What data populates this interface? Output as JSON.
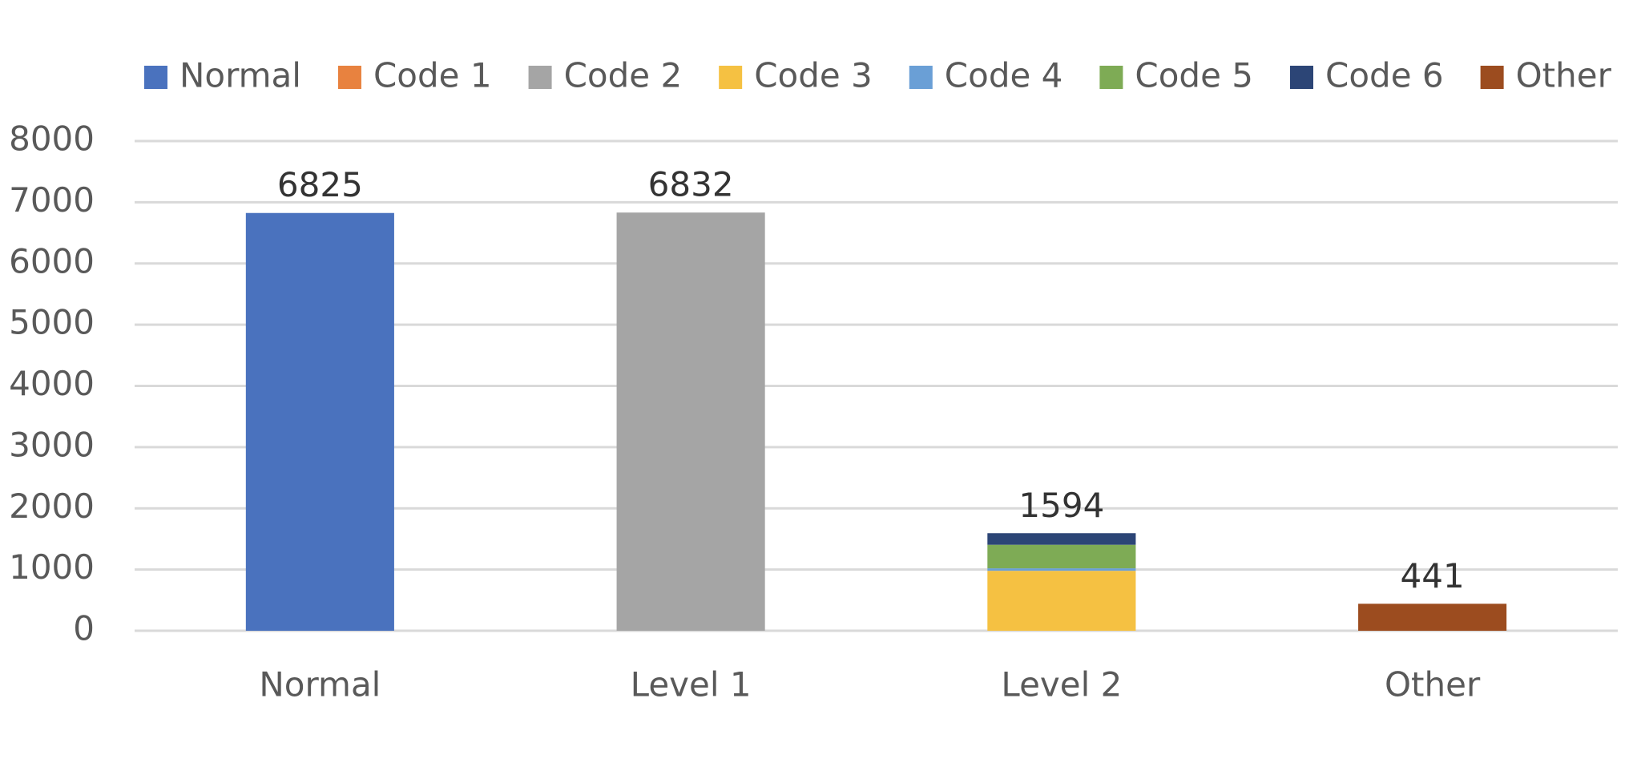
{
  "chart_data": {
    "type": "stacked-bar",
    "categories": [
      "Normal",
      "Level 1",
      "Level 2",
      "Other"
    ],
    "series": [
      {
        "name": "Normal",
        "color": "#4a72be",
        "values": [
          6825,
          null,
          null,
          null
        ]
      },
      {
        "name": "Code 1",
        "color": "#e8823f",
        "values": [
          null,
          null,
          null,
          null
        ]
      },
      {
        "name": "Code 2",
        "color": "#a5a5a5",
        "values": [
          null,
          6832,
          null,
          null
        ]
      },
      {
        "name": "Code 3",
        "color": "#f5c142",
        "values": [
          null,
          null,
          980,
          null
        ]
      },
      {
        "name": "Code 4",
        "color": "#6a9fd6",
        "values": [
          null,
          null,
          40,
          null
        ]
      },
      {
        "name": "Code 5",
        "color": "#7eab55",
        "values": [
          null,
          null,
          385,
          null
        ]
      },
      {
        "name": "Code 6",
        "color": "#2c4576",
        "values": [
          null,
          null,
          189,
          null
        ]
      },
      {
        "name": "Other",
        "color": "#9c4c1f",
        "values": [
          null,
          null,
          null,
          441
        ]
      }
    ],
    "totals": [
      6825,
      6832,
      1594,
      441
    ],
    "ylim": [
      0,
      8000
    ],
    "yticks": [
      0,
      1000,
      2000,
      3000,
      4000,
      5000,
      6000,
      7000,
      8000
    ],
    "grid": true,
    "legend": "top"
  }
}
